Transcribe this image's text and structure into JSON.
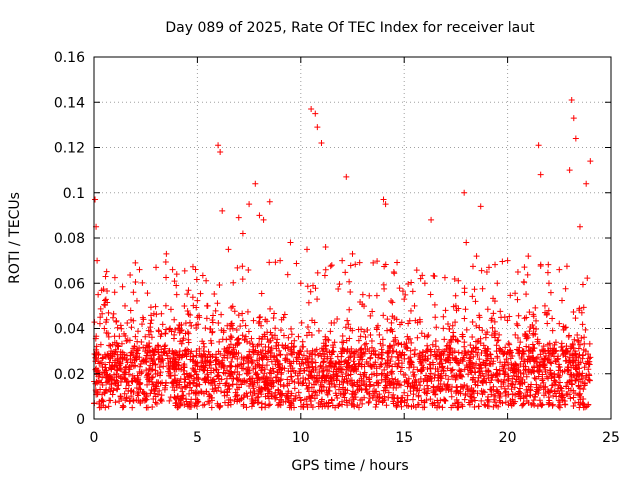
{
  "chart_data": {
    "type": "scatter",
    "title": "Day 089 of 2025, Rate Of TEC Index for receiver laut",
    "xlabel": "GPS time / hours",
    "ylabel": "ROTI / TECUs",
    "xlim": [
      0,
      25
    ],
    "ylim": [
      0,
      0.16
    ],
    "xticks": [
      "0",
      "5",
      "10",
      "15",
      "20",
      "25"
    ],
    "yticks": [
      "0",
      "0.02",
      "0.04",
      "0.06",
      "0.08",
      "0.1",
      "0.12",
      "0.14",
      "0.16"
    ],
    "grid": true,
    "marker": "+",
    "color": "#ff0000",
    "series": [
      {
        "x": [
          0.05,
          0.1,
          0.15,
          0.2,
          0.3,
          0.5,
          1,
          1.5,
          2,
          2.2,
          3,
          3.5,
          3.8,
          4,
          5,
          5.5,
          6,
          6.1,
          6.2,
          6.5,
          7,
          7.2,
          7.5,
          7.8,
          8,
          8.2,
          8.5,
          9,
          9.5,
          10,
          10.3,
          10.5,
          10.7,
          10.8,
          11,
          11.2,
          11.5,
          12,
          12.2,
          12.5,
          13,
          13.5,
          14,
          14.1,
          14.5,
          15,
          15.5,
          16,
          16.3,
          16.5,
          17,
          17.5,
          17.9,
          18,
          18.5,
          18.7,
          19,
          19.5,
          20,
          20.5,
          21,
          21.5,
          21.6,
          22,
          22.5,
          23,
          23.1,
          23.2,
          23.3,
          23.5,
          23.8,
          24
        ],
        "y": [
          0.097,
          0.085,
          0.07,
          0.055,
          0.045,
          0.04,
          0.056,
          0.05,
          0.069,
          0.066,
          0.067,
          0.073,
          0.066,
          0.055,
          0.045,
          0.05,
          0.121,
          0.118,
          0.092,
          0.075,
          0.089,
          0.082,
          0.095,
          0.104,
          0.09,
          0.088,
          0.096,
          0.07,
          0.078,
          0.06,
          0.075,
          0.137,
          0.135,
          0.129,
          0.122,
          0.076,
          0.068,
          0.07,
          0.107,
          0.073,
          0.055,
          0.069,
          0.097,
          0.095,
          0.065,
          0.053,
          0.05,
          0.06,
          0.088,
          0.045,
          0.048,
          0.05,
          0.1,
          0.078,
          0.072,
          0.094,
          0.065,
          0.06,
          0.07,
          0.065,
          0.072,
          0.121,
          0.108,
          0.06,
          0.066,
          0.11,
          0.141,
          0.133,
          0.124,
          0.085,
          0.104,
          0.114
        ]
      }
    ],
    "baseline": {
      "typical_min": 0.005,
      "typical_max": 0.03
    }
  }
}
